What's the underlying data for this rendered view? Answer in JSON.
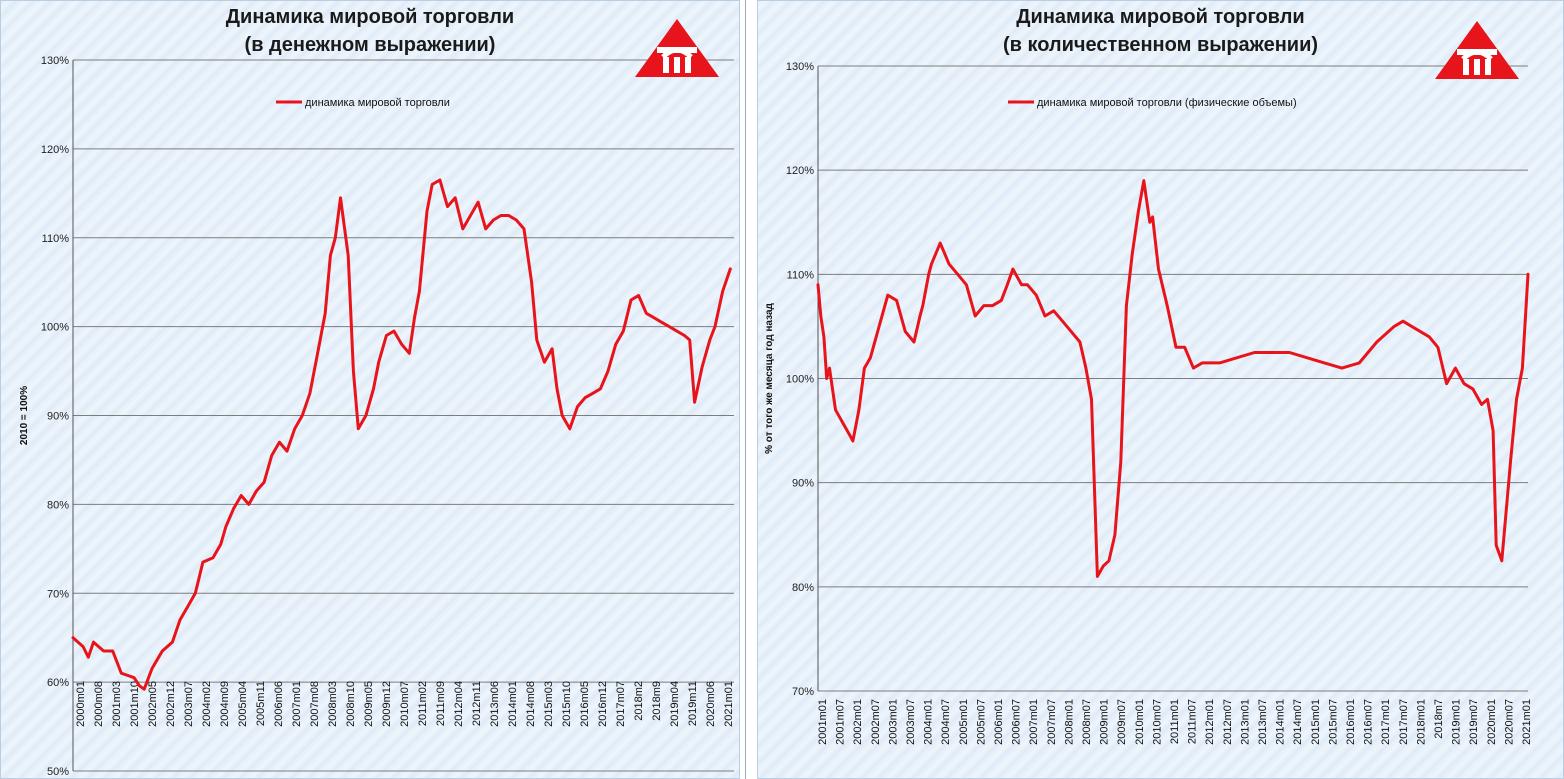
{
  "charts": [
    {
      "title_line1": "Динамика мировой торговли",
      "title_line2": "(в денежном выражении)"
    },
    {
      "title_line1": "Динамика мировой торговли",
      "title_line2": "(в количественном выражении)"
    }
  ],
  "logo_icon": "red-triangle-logo-icon",
  "colors": {
    "series": "#e8141c",
    "grid": "#7d7d7d",
    "logo": "#e8141c"
  },
  "chart_data": [
    {
      "type": "line",
      "title": "Динамика мировой торговли (в денежном выражении)",
      "ylabel": "2010 = 100%",
      "ylim": [
        50,
        130
      ],
      "y_ticks": [
        "50%",
        "60%",
        "70%",
        "80%",
        "90%",
        "100%",
        "110%",
        "120%",
        "130%"
      ],
      "y_tick_values": [
        50,
        60,
        70,
        80,
        90,
        100,
        110,
        120,
        130
      ],
      "x_ticks": [
        "2000m01",
        "2000m08",
        "2001m03",
        "2001m10",
        "2002m05",
        "2002m12",
        "2003m07",
        "2004m02",
        "2004m09",
        "2005m04",
        "2005m11",
        "2006m06",
        "2007m01",
        "2007m08",
        "2008m03",
        "2008m10",
        "2009m05",
        "2009m12",
        "2010m07",
        "2011m02",
        "2011m09",
        "2012m04",
        "2012m11",
        "2013m06",
        "2014m01",
        "2014m08",
        "2015m03",
        "2015m10",
        "2016m05",
        "2016m12",
        "2017m07",
        "2018m2",
        "2018m9",
        "2019m04",
        "2019m11",
        "2020m06",
        "2021m01"
      ],
      "xlim": [
        2000.0,
        2021.62
      ],
      "grid": true,
      "legend_position": "top-left",
      "series": [
        {
          "name": "динамика мировой торговли",
          "x": [
            2000.0,
            2000.33,
            2000.5,
            2000.67,
            2001.0,
            2001.3,
            2001.58,
            2001.75,
            2002.0,
            2002.17,
            2002.33,
            2002.58,
            2002.92,
            2003.25,
            2003.5,
            2003.75,
            2004.0,
            2004.25,
            2004.58,
            2004.83,
            2005.0,
            2005.25,
            2005.5,
            2005.75,
            2006.0,
            2006.25,
            2006.5,
            2006.75,
            2007.0,
            2007.25,
            2007.5,
            2007.75,
            2008.0,
            2008.25,
            2008.42,
            2008.58,
            2008.75,
            2009.0,
            2009.17,
            2009.33,
            2009.58,
            2009.83,
            2010.0,
            2010.25,
            2010.5,
            2010.75,
            2011.0,
            2011.17,
            2011.33,
            2011.58,
            2011.75,
            2012.0,
            2012.25,
            2012.5,
            2012.75,
            2013.0,
            2013.25,
            2013.5,
            2013.75,
            2014.0,
            2014.25,
            2014.5,
            2014.75,
            2015.0,
            2015.17,
            2015.42,
            2015.67,
            2015.83,
            2016.0,
            2016.25,
            2016.5,
            2016.75,
            2017.0,
            2017.25,
            2017.5,
            2017.75,
            2018.0,
            2018.25,
            2018.5,
            2018.75,
            2019.0,
            2019.25,
            2019.5,
            2019.75,
            2020.0,
            2020.17,
            2020.33,
            2020.58,
            2020.83,
            2021.0,
            2021.25,
            2021.5
          ],
          "values": [
            65,
            64,
            62.8,
            64.5,
            63.5,
            63.5,
            61,
            60.8,
            60.5,
            59.6,
            59.2,
            61.5,
            63.5,
            64.5,
            67,
            68.5,
            70,
            73.5,
            74,
            75.5,
            77.5,
            79.5,
            81,
            80,
            81.5,
            82.5,
            85.5,
            87,
            86,
            88.5,
            90,
            92.5,
            97,
            101.5,
            108,
            110,
            114.5,
            108,
            95,
            88.5,
            90,
            93,
            96,
            99,
            99.5,
            98,
            97,
            101,
            104,
            113,
            116,
            116.5,
            113.5,
            114.5,
            111,
            112.5,
            114,
            111,
            112,
            112.5,
            112.5,
            112,
            111,
            105,
            98.5,
            96,
            97.5,
            93,
            90,
            88.5,
            91,
            92,
            92.5,
            93,
            95,
            98,
            99.5,
            103,
            103.5,
            101.5,
            101,
            100.5,
            100,
            99.5,
            99,
            98.5,
            91.5,
            95.5,
            98.5,
            100,
            104,
            106.5
          ]
        }
      ]
    },
    {
      "type": "line",
      "title": "Динамика мировой торговли (в количественном выражении)",
      "ylabel": "% от того же месяца год назад",
      "ylim": [
        70,
        130
      ],
      "y_ticks": [
        "70%",
        "80%",
        "90%",
        "100%",
        "110%",
        "120%",
        "130%"
      ],
      "y_tick_values": [
        70,
        80,
        90,
        100,
        110,
        120,
        130
      ],
      "x_ticks": [
        "2001m01",
        "2001m07",
        "2002m01",
        "2002m07",
        "2003m01",
        "2003m07",
        "2004m01",
        "2004m07",
        "2005m01",
        "2005m07",
        "2006m01",
        "2006m07",
        "2007m01",
        "2007m07",
        "2008m01",
        "2008m07",
        "2009m01",
        "2009m07",
        "2010m01",
        "2010m07",
        "2011m01",
        "2011m07",
        "2012m01",
        "2012m07",
        "2013m01",
        "2013m07",
        "2014m01",
        "2014m07",
        "2015m01",
        "2015m07",
        "2016m01",
        "2016m07",
        "2017m01",
        "2017m07",
        "2018m01",
        "2018m7",
        "2019m01",
        "2019m07",
        "2020m01",
        "2020m07",
        "2021m01"
      ],
      "xlim": [
        2001.0,
        2021.33
      ],
      "grid": true,
      "legend_position": "top-center",
      "series": [
        {
          "name": "динамика мировой торговли (физические объемы)",
          "x": [
            2001.0,
            2001.08,
            2001.17,
            2001.25,
            2001.33,
            2001.5,
            2001.75,
            2001.92,
            2002.0,
            2002.17,
            2002.33,
            2002.5,
            2002.75,
            2003.0,
            2003.25,
            2003.5,
            2003.75,
            2003.92,
            2004.0,
            2004.17,
            2004.25,
            2004.5,
            2004.75,
            2005.0,
            2005.25,
            2005.5,
            2005.75,
            2006.0,
            2006.25,
            2006.42,
            2006.58,
            2006.83,
            2007.0,
            2007.25,
            2007.5,
            2007.75,
            2008.0,
            2008.25,
            2008.5,
            2008.67,
            2008.83,
            2009.0,
            2009.17,
            2009.33,
            2009.5,
            2009.67,
            2009.83,
            2010.0,
            2010.17,
            2010.33,
            2010.5,
            2010.58,
            2010.75,
            2011.0,
            2011.25,
            2011.5,
            2011.75,
            2012.0,
            2012.5,
            2013.0,
            2013.5,
            2014.0,
            2014.5,
            2015.0,
            2015.5,
            2016.0,
            2016.5,
            2017.0,
            2017.5,
            2017.75,
            2018.0,
            2018.25,
            2018.5,
            2018.75,
            2019.0,
            2019.25,
            2019.5,
            2019.75,
            2020.0,
            2020.17,
            2020.33,
            2020.42,
            2020.58,
            2020.83,
            2021.0,
            2021.17,
            2021.33
          ],
          "values": [
            109,
            106,
            104,
            100,
            101,
            97,
            95.5,
            94.5,
            94,
            97,
            101,
            102,
            105,
            108,
            107.5,
            104.5,
            103.5,
            106,
            107,
            110,
            111,
            113,
            111,
            110,
            109,
            106,
            107,
            107,
            107.5,
            109,
            110.5,
            109,
            109,
            108,
            106,
            106.5,
            105.5,
            104.5,
            103.5,
            101,
            98,
            81,
            82,
            82.5,
            85,
            92,
            107,
            112,
            116,
            119,
            115,
            115.5,
            110.5,
            107,
            103,
            103,
            101,
            101.5,
            101.5,
            102,
            102.5,
            102.5,
            102.5,
            102,
            101.5,
            101,
            101.5,
            103.5,
            105,
            105.5,
            105,
            104.5,
            104,
            103,
            99.5,
            101,
            99.5,
            99,
            97.5,
            98,
            95,
            84,
            82.5,
            92,
            98,
            101,
            110
          ]
        }
      ]
    }
  ]
}
